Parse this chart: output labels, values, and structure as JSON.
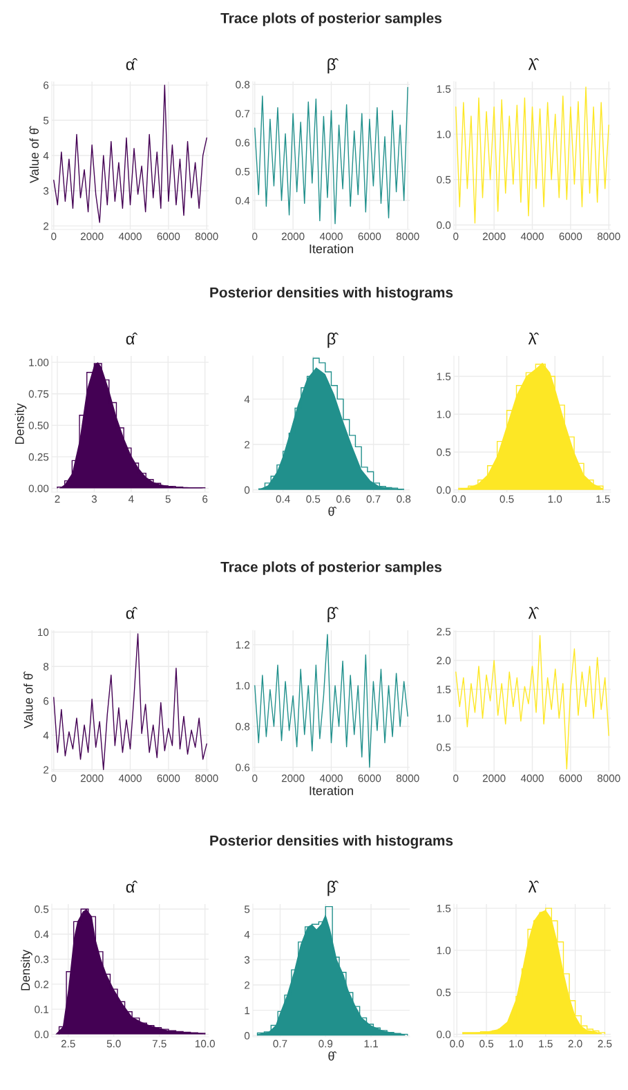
{
  "chart_data": [
    {
      "type": "line",
      "subtitle": "α̂",
      "ylabel": "Value of θ̂",
      "grid": true,
      "xlim": [
        -100,
        8100
      ],
      "ylim": [
        1.9,
        6.1
      ],
      "xticks": [
        0,
        2000,
        4000,
        6000,
        8000
      ],
      "yticks": [
        2,
        3,
        4,
        5,
        6
      ],
      "series": [
        {
          "color": "#440154",
          "x": [
            0,
            200,
            400,
            600,
            800,
            1000,
            1200,
            1400,
            1600,
            1800,
            2000,
            2200,
            2400,
            2600,
            2800,
            3000,
            3200,
            3400,
            3600,
            3800,
            4000,
            4200,
            4400,
            4600,
            4800,
            5000,
            5200,
            5400,
            5600,
            5800,
            6000,
            6200,
            6400,
            6600,
            6800,
            7000,
            7200,
            7400,
            7600,
            7800,
            8000
          ],
          "values": [
            3.3,
            2.6,
            4.1,
            2.7,
            3.9,
            2.5,
            4.6,
            2.8,
            3.6,
            2.4,
            4.3,
            2.9,
            2.1,
            4.0,
            2.6,
            4.4,
            2.7,
            3.8,
            2.5,
            4.5,
            2.6,
            4.2,
            2.9,
            3.7,
            2.4,
            4.6,
            2.8,
            4.1,
            2.5,
            6.0,
            2.7,
            4.3,
            2.6,
            3.9,
            2.3,
            4.4,
            2.8,
            3.8,
            2.5,
            4.0,
            4.5
          ]
        }
      ]
    },
    {
      "type": "line",
      "title": "Trace plots of posterior samples",
      "subtitle": "β̂",
      "xlabel": "Iteration",
      "grid": true,
      "xlim": [
        -100,
        8100
      ],
      "ylim": [
        0.3,
        0.81
      ],
      "xticks": [
        0,
        2000,
        4000,
        6000,
        8000
      ],
      "yticks": [
        0.4,
        0.5,
        0.6,
        0.7,
        0.8
      ],
      "series": [
        {
          "color": "#21908c",
          "x": [
            0,
            200,
            400,
            600,
            800,
            1000,
            1200,
            1400,
            1600,
            1800,
            2000,
            2200,
            2400,
            2600,
            2800,
            3000,
            3200,
            3400,
            3600,
            3800,
            4000,
            4200,
            4400,
            4600,
            4800,
            5000,
            5200,
            5400,
            5600,
            5800,
            6000,
            6200,
            6400,
            6600,
            6800,
            7000,
            7200,
            7400,
            7600,
            7800,
            8000
          ],
          "values": [
            0.65,
            0.42,
            0.76,
            0.38,
            0.68,
            0.45,
            0.72,
            0.4,
            0.63,
            0.35,
            0.7,
            0.43,
            0.67,
            0.39,
            0.74,
            0.46,
            0.75,
            0.33,
            0.69,
            0.41,
            0.71,
            0.32,
            0.66,
            0.44,
            0.73,
            0.38,
            0.64,
            0.42,
            0.7,
            0.36,
            0.68,
            0.45,
            0.72,
            0.39,
            0.62,
            0.34,
            0.71,
            0.43,
            0.66,
            0.4,
            0.79
          ]
        }
      ]
    },
    {
      "type": "line",
      "subtitle": "λ̂",
      "grid": true,
      "xlim": [
        -100,
        8100
      ],
      "ylim": [
        -0.05,
        1.58
      ],
      "xticks": [
        0,
        2000,
        4000,
        6000,
        8000
      ],
      "yticks": [
        {
          "value": 0,
          "label": "0.0"
        },
        0.5,
        {
          "value": 1,
          "label": "1.0"
        },
        1.5
      ],
      "series": [
        {
          "color": "#fde725",
          "x": [
            0,
            200,
            400,
            600,
            800,
            1000,
            1200,
            1400,
            1600,
            1800,
            2000,
            2200,
            2400,
            2600,
            2800,
            3000,
            3200,
            3400,
            3600,
            3800,
            4000,
            4200,
            4400,
            4600,
            4800,
            5000,
            5200,
            5400,
            5600,
            5800,
            6000,
            6200,
            6400,
            6600,
            6800,
            7000,
            7200,
            7400,
            7600,
            7800,
            8000
          ],
          "values": [
            1.3,
            0.2,
            1.35,
            0.4,
            1.2,
            0.02,
            1.4,
            0.3,
            1.25,
            0.5,
            1.3,
            0.15,
            1.38,
            0.35,
            1.2,
            0.45,
            1.32,
            0.25,
            1.4,
            0.1,
            1.3,
            0.4,
            1.28,
            0.2,
            1.35,
            0.5,
            1.22,
            0.3,
            1.42,
            0.28,
            1.3,
            0.45,
            1.36,
            0.2,
            1.52,
            0.35,
            1.3,
            0.25,
            1.35,
            0.4,
            1.1
          ]
        }
      ]
    },
    {
      "type": "area",
      "subtitle": "α̂",
      "ylabel": "Density",
      "grid": true,
      "xlim": [
        1.85,
        6.1
      ],
      "ylim": [
        -0.03,
        1.05
      ],
      "xticks": [
        2,
        3,
        4,
        5,
        6
      ],
      "yticks": [
        {
          "value": 0,
          "label": "0.00"
        },
        {
          "value": 0.25,
          "label": "0.25"
        },
        {
          "value": 0.5,
          "label": "0.50"
        },
        {
          "value": 0.75,
          "label": "0.75"
        },
        {
          "value": 1,
          "label": "1.00"
        }
      ],
      "series": [
        {
          "type": "area",
          "color": "#440154",
          "x": [
            2.05,
            2.2,
            2.4,
            2.6,
            2.8,
            3.0,
            3.1,
            3.2,
            3.4,
            3.6,
            3.8,
            4.0,
            4.2,
            4.4,
            4.6,
            4.8,
            5.0,
            5.2,
            5.5,
            5.8,
            6.0
          ],
          "values": [
            0,
            0.03,
            0.12,
            0.38,
            0.78,
            0.98,
            1.0,
            0.96,
            0.78,
            0.57,
            0.4,
            0.26,
            0.16,
            0.09,
            0.05,
            0.03,
            0.02,
            0.01,
            0.01,
            0.005,
            0
          ]
        },
        {
          "type": "histogram",
          "color": "#440154",
          "bins": [
            2.0,
            2.2,
            2.4,
            2.6,
            2.8,
            3.0,
            3.2,
            3.4,
            3.6,
            3.8,
            4.0,
            4.2,
            4.4,
            4.6,
            4.8,
            5.0,
            5.2,
            5.4,
            5.6,
            5.8,
            6.0
          ],
          "values": [
            0.01,
            0.06,
            0.22,
            0.58,
            0.92,
            0.99,
            0.86,
            0.68,
            0.48,
            0.32,
            0.2,
            0.12,
            0.07,
            0.04,
            0.02,
            0.015,
            0.01,
            0.005,
            0.005,
            0.005
          ]
        }
      ]
    },
    {
      "type": "area",
      "title": "Posterior densities with histograms",
      "subtitle": "β̂",
      "xlabel": "θ̂",
      "grid": true,
      "xlim": [
        0.3,
        0.82
      ],
      "ylim": [
        -0.1,
        5.9
      ],
      "xticks": [
        0.4,
        0.5,
        0.6,
        0.7,
        0.8
      ],
      "yticks": [
        0,
        2,
        4
      ],
      "series": [
        {
          "type": "area",
          "color": "#21908c",
          "x": [
            0.32,
            0.35,
            0.38,
            0.4,
            0.42,
            0.45,
            0.48,
            0.51,
            0.54,
            0.57,
            0.6,
            0.63,
            0.66,
            0.69,
            0.72,
            0.75,
            0.78,
            0.8
          ],
          "values": [
            0.02,
            0.2,
            0.8,
            1.5,
            2.4,
            3.8,
            4.9,
            5.4,
            5.1,
            4.2,
            3.0,
            1.9,
            0.9,
            0.4,
            0.15,
            0.08,
            0.05,
            0.01
          ]
        },
        {
          "type": "histogram",
          "color": "#21908c",
          "bins": [
            0.32,
            0.34,
            0.36,
            0.38,
            0.4,
            0.42,
            0.44,
            0.46,
            0.48,
            0.5,
            0.52,
            0.54,
            0.56,
            0.58,
            0.6,
            0.62,
            0.64,
            0.66,
            0.68,
            0.7,
            0.72,
            0.74,
            0.76,
            0.78,
            0.8
          ],
          "values": [
            0.05,
            0.3,
            0.6,
            1.1,
            1.7,
            2.5,
            3.6,
            4.5,
            5.0,
            5.8,
            5.6,
            5.2,
            4.6,
            4.0,
            3.1,
            2.4,
            1.9,
            1.0,
            0.8,
            0.3,
            0.15,
            0.1,
            0.08,
            0.03
          ]
        }
      ]
    },
    {
      "type": "area",
      "subtitle": "λ̂",
      "grid": true,
      "xlim": [
        -0.05,
        1.58
      ],
      "ylim": [
        -0.03,
        1.77
      ],
      "xticks": [
        {
          "value": 0,
          "label": "0.0"
        },
        0.5,
        {
          "value": 1,
          "label": "1.0"
        },
        1.5
      ],
      "yticks": [
        {
          "value": 0,
          "label": "0.0"
        },
        0.5,
        {
          "value": 1,
          "label": "1.0"
        },
        1.5
      ],
      "series": [
        {
          "type": "area",
          "color": "#fde725",
          "x": [
            0.0,
            0.1,
            0.2,
            0.3,
            0.4,
            0.5,
            0.6,
            0.7,
            0.8,
            0.87,
            0.95,
            1.0,
            1.1,
            1.2,
            1.3,
            1.4,
            1.5
          ],
          "values": [
            0.01,
            0.03,
            0.08,
            0.2,
            0.45,
            0.85,
            1.25,
            1.5,
            1.6,
            1.68,
            1.55,
            1.35,
            0.9,
            0.5,
            0.2,
            0.08,
            0.02
          ]
        },
        {
          "type": "histogram",
          "color": "#fde725",
          "bins": [
            0,
            0.1,
            0.2,
            0.3,
            0.4,
            0.5,
            0.6,
            0.7,
            0.8,
            0.9,
            1.0,
            1.1,
            1.2,
            1.3,
            1.4,
            1.5
          ],
          "values": [
            0.02,
            0.05,
            0.13,
            0.32,
            0.64,
            1.05,
            1.38,
            1.55,
            1.66,
            1.5,
            1.12,
            0.7,
            0.35,
            0.13,
            0.05
          ]
        }
      ]
    },
    {
      "type": "line",
      "subtitle": "α̂",
      "ylabel": "Value of θ̂",
      "grid": true,
      "xlim": [
        -100,
        8100
      ],
      "ylim": [
        1.9,
        10.1
      ],
      "xticks": [
        0,
        2000,
        4000,
        6000,
        8000
      ],
      "yticks": [
        2,
        4,
        6,
        8,
        10
      ],
      "series": [
        {
          "color": "#440154",
          "x": [
            0,
            200,
            400,
            600,
            800,
            1000,
            1200,
            1400,
            1600,
            1800,
            2000,
            2200,
            2400,
            2600,
            2800,
            3000,
            3200,
            3400,
            3600,
            3800,
            4000,
            4200,
            4400,
            4600,
            4800,
            5000,
            5200,
            5400,
            5600,
            5800,
            6000,
            6200,
            6400,
            6600,
            6800,
            7000,
            7200,
            7400,
            7600,
            7800,
            8000
          ],
          "values": [
            6.2,
            3.0,
            5.5,
            2.8,
            4.2,
            3.2,
            5.0,
            2.6,
            4.6,
            3.0,
            6.1,
            3.3,
            4.8,
            2.0,
            5.2,
            7.5,
            3.4,
            5.6,
            3.0,
            4.9,
            3.2,
            6.3,
            9.9,
            4.1,
            5.8,
            3.0,
            4.6,
            2.7,
            5.9,
            3.1,
            4.4,
            3.4,
            7.9,
            3.2,
            5.1,
            2.9,
            4.3,
            3.3,
            5.0,
            2.6,
            3.5
          ]
        }
      ]
    },
    {
      "type": "line",
      "title": "Trace plots of posterior samples",
      "subtitle": "β̂",
      "xlabel": "Iteration",
      "grid": true,
      "xlim": [
        -100,
        8100
      ],
      "ylim": [
        0.58,
        1.27
      ],
      "xticks": [
        0,
        2000,
        4000,
        6000,
        8000
      ],
      "yticks": [
        0.6,
        0.8,
        {
          "value": 1,
          "label": "1.0"
        },
        1.2
      ],
      "series": [
        {
          "color": "#21908c",
          "x": [
            0,
            200,
            400,
            600,
            800,
            1000,
            1200,
            1400,
            1600,
            1800,
            2000,
            2200,
            2400,
            2600,
            2800,
            3000,
            3200,
            3400,
            3600,
            3800,
            4000,
            4200,
            4400,
            4600,
            4800,
            5000,
            5200,
            5400,
            5600,
            5800,
            6000,
            6200,
            6400,
            6600,
            6800,
            7000,
            7200,
            7400,
            7600,
            7800,
            8000
          ],
          "values": [
            1.0,
            0.72,
            1.05,
            0.75,
            0.98,
            0.8,
            1.1,
            0.73,
            1.02,
            0.78,
            0.95,
            0.7,
            1.08,
            0.76,
            1.0,
            0.68,
            1.1,
            0.74,
            0.95,
            1.25,
            0.72,
            1.0,
            0.8,
            1.12,
            0.7,
            1.05,
            0.76,
            1.0,
            0.65,
            1.15,
            0.6,
            1.02,
            0.78,
            1.08,
            0.72,
            1.0,
            0.75,
            1.06,
            0.8,
            1.02,
            0.85
          ]
        }
      ]
    },
    {
      "type": "line",
      "subtitle": "λ̂",
      "grid": true,
      "xlim": [
        -100,
        8100
      ],
      "ylim": [
        0.08,
        2.52
      ],
      "xticks": [
        0,
        2000,
        4000,
        6000,
        8000
      ],
      "yticks": [
        0.5,
        {
          "value": 1,
          "label": "1.0"
        },
        1.5,
        {
          "value": 2,
          "label": "2.0"
        },
        2.5
      ],
      "series": [
        {
          "color": "#fde725",
          "x": [
            0,
            200,
            400,
            600,
            800,
            1000,
            1200,
            1400,
            1600,
            1800,
            2000,
            2200,
            2400,
            2600,
            2800,
            3000,
            3200,
            3400,
            3600,
            3800,
            4000,
            4200,
            4400,
            4600,
            4800,
            5000,
            5200,
            5400,
            5600,
            5800,
            6000,
            6200,
            6400,
            6600,
            6800,
            7000,
            7200,
            7400,
            7600,
            7800,
            8000
          ],
          "values": [
            1.8,
            1.2,
            1.7,
            0.85,
            1.6,
            1.1,
            1.9,
            1.0,
            1.75,
            1.3,
            2.0,
            1.05,
            1.6,
            0.9,
            1.8,
            1.2,
            1.7,
            0.95,
            1.55,
            1.25,
            1.9,
            1.1,
            2.43,
            0.9,
            1.7,
            1.15,
            1.85,
            1.0,
            1.6,
            0.12,
            1.5,
            2.2,
            1.05,
            1.8,
            1.2,
            1.9,
            1.0,
            2.05,
            1.15,
            1.7,
            0.7
          ]
        }
      ]
    },
    {
      "type": "area",
      "subtitle": "α̂",
      "ylabel": "Density",
      "grid": true,
      "xlim": [
        1.6,
        10.2
      ],
      "ylim": [
        -0.01,
        0.52
      ],
      "xticks": [
        2.5,
        {
          "value": 5,
          "label": "5.0"
        },
        7.5,
        {
          "value": 10,
          "label": "10.0"
        }
      ],
      "yticks": [
        {
          "value": 0,
          "label": "0.0"
        },
        0.1,
        0.2,
        0.3,
        0.4,
        0.5
      ],
      "series": [
        {
          "type": "area",
          "color": "#440154",
          "x": [
            1.8,
            2.2,
            2.5,
            2.8,
            3.0,
            3.3,
            3.5,
            3.8,
            4.0,
            4.3,
            4.6,
            5.0,
            5.5,
            6.0,
            6.5,
            7.0,
            7.5,
            8.0,
            9.0,
            10.0
          ],
          "values": [
            0,
            0.03,
            0.18,
            0.38,
            0.45,
            0.49,
            0.5,
            0.47,
            0.38,
            0.3,
            0.24,
            0.18,
            0.12,
            0.07,
            0.05,
            0.035,
            0.025,
            0.015,
            0.008,
            0.003
          ]
        },
        {
          "type": "histogram",
          "color": "#440154",
          "bins": [
            2.0,
            2.4,
            2.8,
            3.2,
            3.6,
            4.0,
            4.4,
            4.8,
            5.2,
            5.6,
            6.0,
            6.4,
            6.8,
            7.2,
            7.6,
            8.0,
            8.4,
            8.8,
            9.2,
            9.6,
            10.0
          ],
          "values": [
            0.03,
            0.25,
            0.45,
            0.5,
            0.47,
            0.33,
            0.24,
            0.18,
            0.13,
            0.09,
            0.065,
            0.045,
            0.035,
            0.027,
            0.02,
            0.014,
            0.011,
            0.008,
            0.006,
            0.004
          ]
        }
      ]
    },
    {
      "type": "area",
      "title": "Posterior densities with histograms",
      "subtitle": "β̂",
      "xlabel": "θ̂",
      "grid": true,
      "xlim": [
        0.58,
        1.27
      ],
      "ylim": [
        -0.05,
        5.2
      ],
      "xticks": [
        0.7,
        0.9,
        1.1
      ],
      "yticks": [
        0,
        1,
        2,
        3,
        4,
        5
      ],
      "series": [
        {
          "type": "area",
          "color": "#21908c",
          "x": [
            0.6,
            0.65,
            0.68,
            0.7,
            0.73,
            0.76,
            0.79,
            0.82,
            0.84,
            0.86,
            0.88,
            0.9,
            0.92,
            0.95,
            0.98,
            1.0,
            1.03,
            1.06,
            1.1,
            1.15,
            1.2,
            1.25
          ],
          "values": [
            0.05,
            0.15,
            0.4,
            0.9,
            1.6,
            2.5,
            3.6,
            4.3,
            4.4,
            4.2,
            4.4,
            4.8,
            4.2,
            3.0,
            2.4,
            1.8,
            1.2,
            0.7,
            0.4,
            0.2,
            0.1,
            0.05
          ]
        },
        {
          "type": "histogram",
          "color": "#21908c",
          "bins": [
            0.6,
            0.63,
            0.66,
            0.69,
            0.72,
            0.75,
            0.78,
            0.81,
            0.84,
            0.87,
            0.9,
            0.93,
            0.96,
            0.99,
            1.02,
            1.05,
            1.08,
            1.11,
            1.14,
            1.17,
            1.2,
            1.23,
            1.26
          ],
          "values": [
            0.1,
            0.14,
            0.4,
            0.95,
            1.6,
            2.6,
            3.7,
            4.3,
            4.4,
            4.5,
            5.1,
            3.1,
            2.5,
            1.7,
            1.15,
            0.7,
            0.45,
            0.3,
            0.2,
            0.12,
            0.08,
            0.05
          ]
        }
      ]
    },
    {
      "type": "area",
      "subtitle": "λ̂",
      "grid": true,
      "xlim": [
        -0.05,
        2.6
      ],
      "ylim": [
        -0.03,
        1.55
      ],
      "xticks": [
        {
          "value": 0,
          "label": "0.0"
        },
        0.5,
        {
          "value": 1,
          "label": "1.0"
        },
        1.5,
        {
          "value": 2,
          "label": "2.0"
        },
        2.5
      ],
      "yticks": [
        {
          "value": 0,
          "label": "0.0"
        },
        0.5,
        {
          "value": 1,
          "label": "1.0"
        },
        1.5
      ],
      "series": [
        {
          "type": "area",
          "color": "#fde725",
          "x": [
            0.1,
            0.3,
            0.5,
            0.7,
            0.85,
            1.0,
            1.1,
            1.2,
            1.3,
            1.4,
            1.5,
            1.6,
            1.7,
            1.8,
            1.9,
            2.0,
            2.1,
            2.2,
            2.3,
            2.45
          ],
          "values": [
            0.02,
            0.02,
            0.03,
            0.06,
            0.15,
            0.42,
            0.75,
            1.1,
            1.35,
            1.45,
            1.48,
            1.38,
            1.1,
            0.75,
            0.45,
            0.22,
            0.1,
            0.05,
            0.04,
            0.01
          ]
        },
        {
          "type": "histogram",
          "color": "#fde725",
          "bins": [
            0.1,
            0.2,
            0.3,
            0.4,
            0.5,
            0.6,
            0.7,
            0.8,
            0.9,
            1.0,
            1.1,
            1.2,
            1.3,
            1.4,
            1.5,
            1.6,
            1.7,
            1.8,
            1.9,
            2.0,
            2.1,
            2.2,
            2.3,
            2.4,
            2.5
          ],
          "values": [
            0.02,
            0.02,
            0.02,
            0.03,
            0.03,
            0.04,
            0.06,
            0.09,
            0.18,
            0.45,
            0.78,
            1.25,
            1.35,
            1.45,
            1.5,
            1.35,
            1.1,
            0.72,
            0.4,
            0.22,
            0.1,
            0.06,
            0.04,
            0.02
          ]
        }
      ]
    }
  ]
}
